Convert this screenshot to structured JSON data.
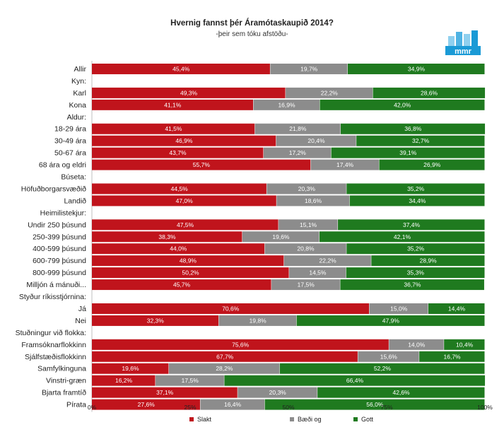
{
  "chart_data": {
    "type": "bar",
    "orientation": "horizontal",
    "stacked": "percent",
    "title": "Hvernig fannst þér Áramótaskaupið 2014?",
    "subtitle": "-þeir sem tóku afstöðu-",
    "xlim": [
      0,
      100
    ],
    "xticks": [
      "0%",
      "25%",
      "50%",
      "75%",
      "100%"
    ],
    "series": [
      {
        "name": "Slakt",
        "color": "#c0141c"
      },
      {
        "name": "Bæði og",
        "color": "#8c8c8c"
      },
      {
        "name": "Gott",
        "color": "#1f7a1f"
      }
    ],
    "rows": [
      {
        "label": "Allir",
        "values": [
          45.4,
          19.7,
          34.9
        ],
        "labels": [
          "45,4%",
          "19,7%",
          "34,9%"
        ]
      },
      {
        "label": "Kyn:",
        "header": true
      },
      {
        "label": "Karl",
        "values": [
          49.3,
          22.2,
          28.6
        ],
        "labels": [
          "49,3%",
          "22,2%",
          "28,6%"
        ]
      },
      {
        "label": "Kona",
        "values": [
          41.1,
          16.9,
          42.0
        ],
        "labels": [
          "41,1%",
          "16,9%",
          "42,0%"
        ]
      },
      {
        "label": "Aldur:",
        "header": true
      },
      {
        "label": "18-29 ára",
        "values": [
          41.5,
          21.8,
          36.8
        ],
        "labels": [
          "41,5%",
          "21,8%",
          "36,8%"
        ]
      },
      {
        "label": "30-49 ára",
        "values": [
          46.9,
          20.4,
          32.7
        ],
        "labels": [
          "46,9%",
          "20,4%",
          "32,7%"
        ]
      },
      {
        "label": "50-67 ára",
        "values": [
          43.7,
          17.2,
          39.1
        ],
        "labels": [
          "43,7%",
          "17,2%",
          "39,1%"
        ]
      },
      {
        "label": "68 ára og eldri",
        "values": [
          55.7,
          17.4,
          26.9
        ],
        "labels": [
          "55,7%",
          "17,4%",
          "26,9%"
        ]
      },
      {
        "label": "Búseta:",
        "header": true
      },
      {
        "label": "Höfuðborgarsvæðið",
        "values": [
          44.5,
          20.3,
          35.2
        ],
        "labels": [
          "44,5%",
          "20,3%",
          "35,2%"
        ]
      },
      {
        "label": "Landið",
        "values": [
          47.0,
          18.6,
          34.4
        ],
        "labels": [
          "47,0%",
          "18,6%",
          "34,4%"
        ]
      },
      {
        "label": "Heimilistekjur:",
        "header": true
      },
      {
        "label": "Undir 250 þúsund",
        "values": [
          47.5,
          15.1,
          37.4
        ],
        "labels": [
          "47,5%",
          "15,1%",
          "37,4%"
        ]
      },
      {
        "label": "250-399 þúsund",
        "values": [
          38.3,
          19.6,
          42.1
        ],
        "labels": [
          "38,3%",
          "19,6%",
          "42,1%"
        ]
      },
      {
        "label": "400-599 þúsund",
        "values": [
          44.0,
          20.8,
          35.2
        ],
        "labels": [
          "44,0%",
          "20,8%",
          "35,2%"
        ]
      },
      {
        "label": "600-799 þúsund",
        "values": [
          48.9,
          22.2,
          28.9
        ],
        "labels": [
          "48,9%",
          "22,2%",
          "28,9%"
        ]
      },
      {
        "label": "800-999 þúsund",
        "values": [
          50.2,
          14.5,
          35.3
        ],
        "labels": [
          "50,2%",
          "14,5%",
          "35,3%"
        ]
      },
      {
        "label": "Milljón á mánuði...",
        "values": [
          45.7,
          17.5,
          36.7
        ],
        "labels": [
          "45,7%",
          "17,5%",
          "36,7%"
        ]
      },
      {
        "label": "Styður ríkisstjórnina:",
        "header": true
      },
      {
        "label": "Já",
        "values": [
          70.6,
          15.0,
          14.4
        ],
        "labels": [
          "70,6%",
          "15,0%",
          "14,4%"
        ]
      },
      {
        "label": "Nei",
        "values": [
          32.3,
          19.8,
          47.9
        ],
        "labels": [
          "32,3%",
          "19,8%",
          "47,9%"
        ]
      },
      {
        "label": "Stuðningur við flokka:",
        "header": true
      },
      {
        "label": "Framsóknarflokkinn",
        "values": [
          75.6,
          14.0,
          10.4
        ],
        "labels": [
          "75,6%",
          "14,0%",
          "10,4%"
        ]
      },
      {
        "label": "Sjálfstæðisflokkinn",
        "values": [
          67.7,
          15.6,
          16.7
        ],
        "labels": [
          "67,7%",
          "15,6%",
          "16,7%"
        ]
      },
      {
        "label": "Samfylkinguna",
        "values": [
          19.6,
          28.2,
          52.2
        ],
        "labels": [
          "19,6%",
          "28,2%",
          "52,2%"
        ]
      },
      {
        "label": "Vinstri-græn",
        "values": [
          16.2,
          17.5,
          66.4
        ],
        "labels": [
          "16,2%",
          "17,5%",
          "66,4%"
        ]
      },
      {
        "label": "Bjarta framtíð",
        "values": [
          37.1,
          20.3,
          42.6
        ],
        "labels": [
          "37,1%",
          "20,3%",
          "42,6%"
        ]
      },
      {
        "label": "Pírata",
        "values": [
          27.6,
          16.4,
          56.0
        ],
        "labels": [
          "27,6%",
          "16,4%",
          "56,0%"
        ]
      }
    ],
    "legend": "bottom",
    "grid": false
  },
  "logo": {
    "text": "mmr",
    "color": "#1a9ad6"
  }
}
